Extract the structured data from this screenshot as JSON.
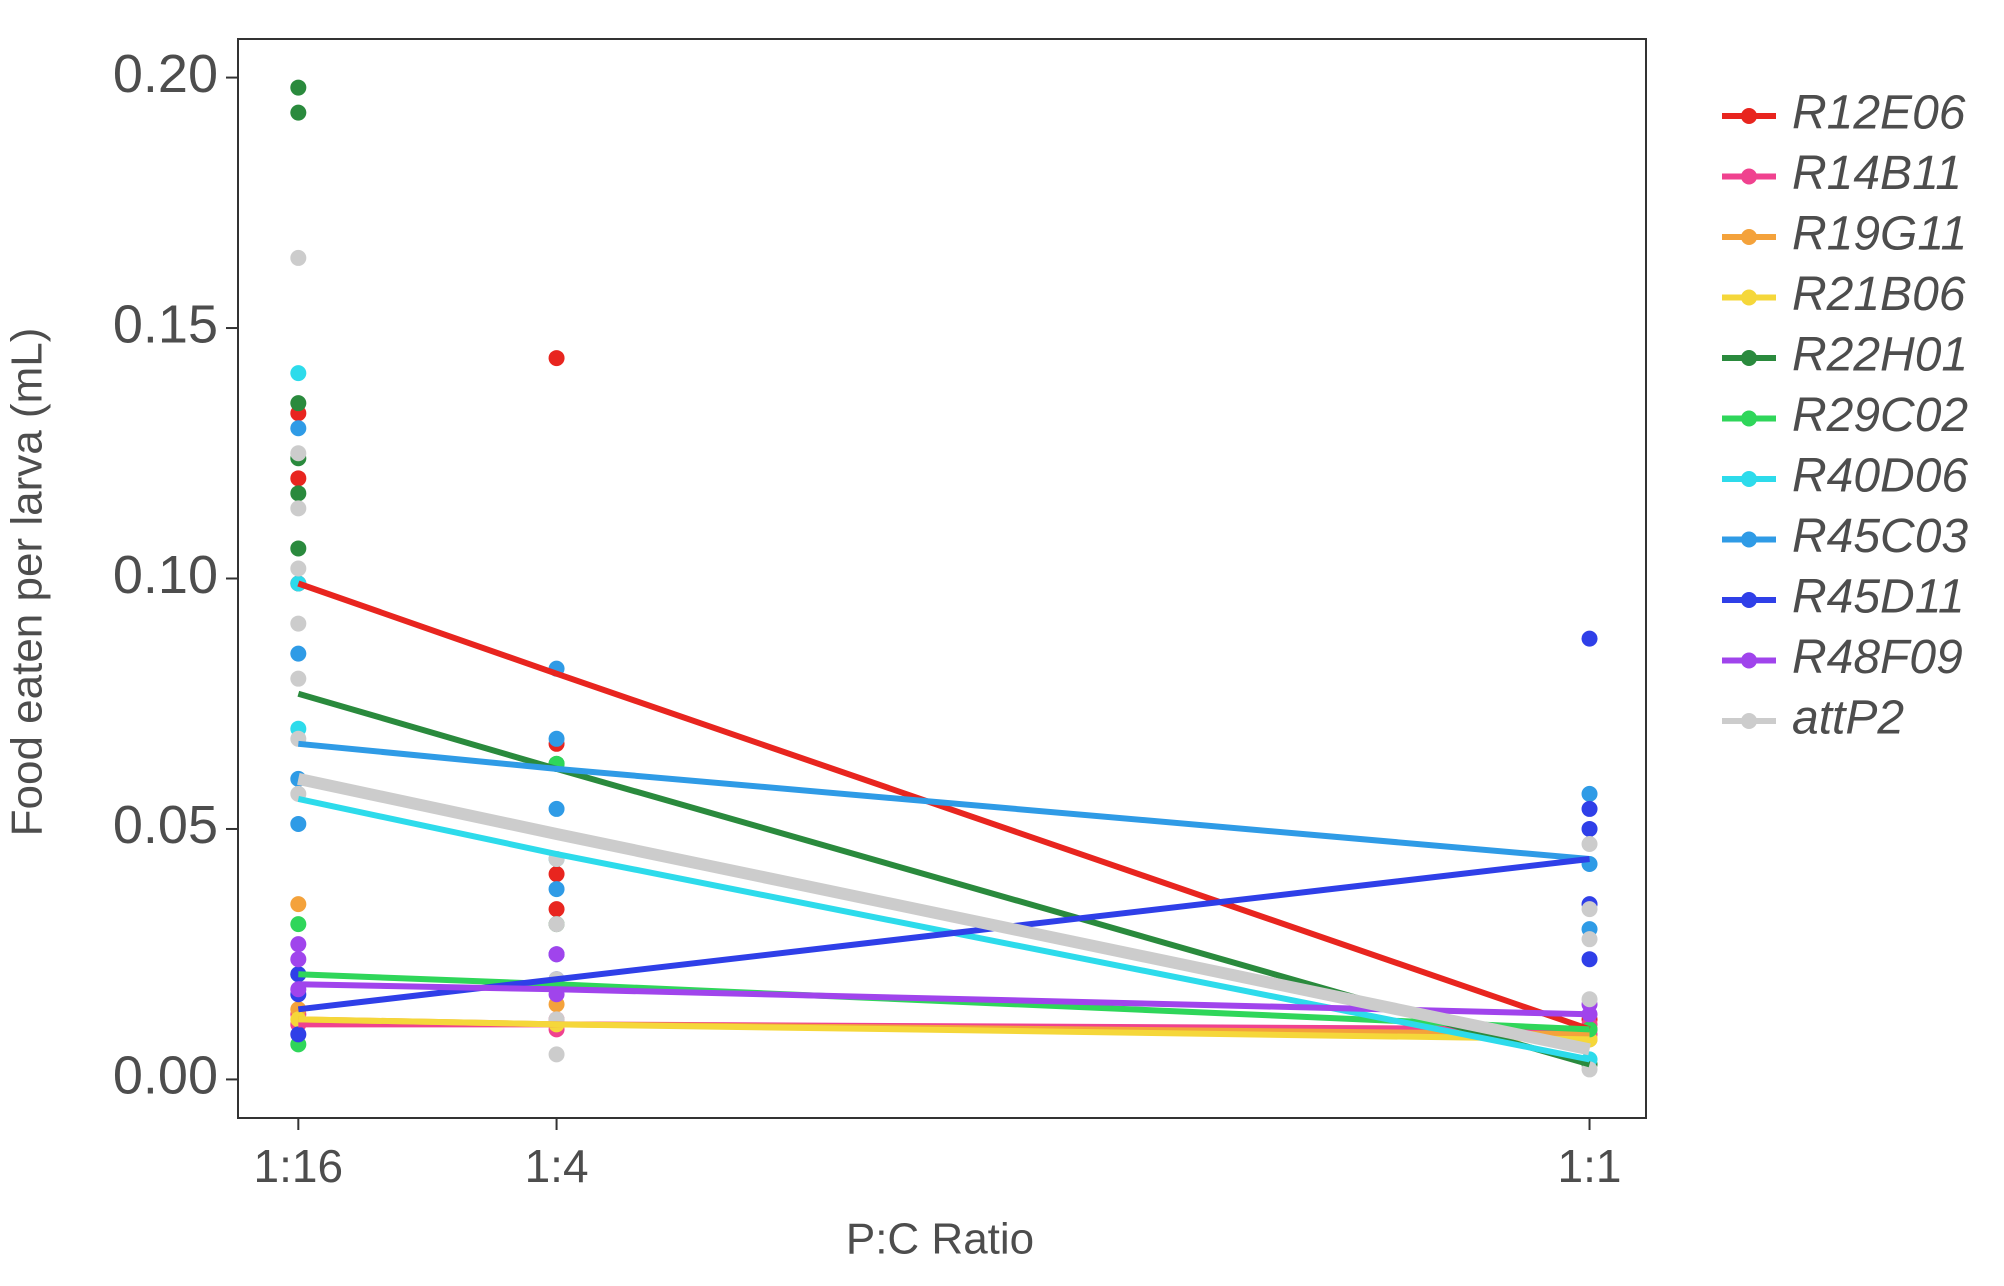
{
  "chart_data": {
    "type": "scatter_line",
    "x_label": "P:C Ratio",
    "y_label": "Food eaten per larva (mL)",
    "x": [
      0.0625,
      0.25,
      1
    ],
    "xlim": [
      0.0187,
      1.041
    ],
    "xticks": [
      {
        "value": 0.0625,
        "label": "1:16"
      },
      {
        "value": 0.25,
        "label": "1:4"
      },
      {
        "value": 1,
        "label": "1:1"
      }
    ],
    "ylim": [
      -0.0077,
      0.2077
    ],
    "yticks": [
      {
        "value": 0,
        "label": "0.00"
      },
      {
        "value": 0.05,
        "label": "0.05"
      },
      {
        "value": 0.1,
        "label": "0.10"
      },
      {
        "value": 0.15,
        "label": "0.15"
      },
      {
        "value": 0.2,
        "label": "0.20"
      }
    ],
    "grid": false,
    "legend": "right",
    "series": [
      {
        "name": "R12E06",
        "color": "#e8251f",
        "values": [
          0.099,
          0.081,
          0.01
        ],
        "px": [
          0.0625,
          0.0625,
          0.0625,
          0.25,
          0.25,
          0.25,
          0.25,
          1,
          1
        ],
        "py": [
          0.12,
          0.133,
          0.099,
          0.144,
          0.067,
          0.041,
          0.034,
          0.01,
          0.012
        ]
      },
      {
        "name": "R14B11",
        "color": "#f0428f",
        "values": [
          0.011,
          0.011,
          0.01
        ],
        "px": [
          0.0625,
          0.0625,
          0.25,
          0.25,
          1,
          1
        ],
        "py": [
          0.013,
          0.011,
          0.012,
          0.01,
          0.009,
          0.011
        ]
      },
      {
        "name": "R19G11",
        "color": "#f4a23b",
        "values": [
          0.012,
          0.011,
          0.009
        ],
        "px": [
          0.0625,
          0.0625,
          0.25,
          1
        ],
        "py": [
          0.035,
          0.014,
          0.015,
          0.008
        ]
      },
      {
        "name": "R21B06",
        "color": "#f5d73a",
        "values": [
          0.012,
          0.011,
          0.008
        ],
        "px": [
          0.0625,
          0.25,
          1
        ],
        "py": [
          0.012,
          0.011,
          0.008
        ]
      },
      {
        "name": "R22H01",
        "color": "#2a8a3d",
        "values": [
          0.077,
          0.062,
          0.003
        ],
        "px": [
          0.0625,
          0.0625,
          0.0625,
          0.0625,
          0.0625,
          0.0625,
          0.25,
          0.25,
          1
        ],
        "py": [
          0.198,
          0.193,
          0.135,
          0.124,
          0.117,
          0.106,
          0.031,
          0.063,
          0.003
        ]
      },
      {
        "name": "R29C02",
        "color": "#2fd65a",
        "values": [
          0.021,
          0.019,
          0.01
        ],
        "px": [
          0.0625,
          0.0625,
          0.0625,
          0.25,
          0.25,
          1
        ],
        "py": [
          0.031,
          0.007,
          0.021,
          0.063,
          0.019,
          0.01
        ]
      },
      {
        "name": "R40D06",
        "color": "#2ddbeb",
        "values": [
          0.056,
          0.045,
          0.004
        ],
        "px": [
          0.0625,
          0.0625,
          0.0625,
          0.25,
          1
        ],
        "py": [
          0.141,
          0.099,
          0.07,
          0.044,
          0.004
        ]
      },
      {
        "name": "R45C03",
        "color": "#2f9be6",
        "values": [
          0.067,
          0.062,
          0.044
        ],
        "px": [
          0.0625,
          0.0625,
          0.0625,
          0.0625,
          0.25,
          0.25,
          0.25,
          0.25,
          1,
          1,
          1
        ],
        "py": [
          0.13,
          0.085,
          0.06,
          0.051,
          0.082,
          0.068,
          0.054,
          0.038,
          0.057,
          0.043,
          0.03
        ]
      },
      {
        "name": "R45D11",
        "color": "#2f3fe8",
        "values": [
          0.014,
          0.02,
          0.044
        ],
        "px": [
          0.0625,
          0.0625,
          0.0625,
          0.25,
          0.25,
          1,
          1,
          1,
          1,
          1
        ],
        "py": [
          0.009,
          0.017,
          0.021,
          0.02,
          0.025,
          0.088,
          0.054,
          0.05,
          0.035,
          0.024
        ]
      },
      {
        "name": "R48F09",
        "color": "#a044ec",
        "values": [
          0.019,
          0.018,
          0.013
        ],
        "px": [
          0.0625,
          0.0625,
          0.0625,
          0.25,
          0.25,
          1,
          1
        ],
        "py": [
          0.027,
          0.024,
          0.018,
          0.025,
          0.017,
          0.013,
          0.015
        ]
      },
      {
        "name": "attP2",
        "color": "#cccccc",
        "values": [
          0.06,
          0.049,
          0.006
        ],
        "px": [
          0.0625,
          0.0625,
          0.0625,
          0.0625,
          0.0625,
          0.0625,
          0.0625,
          0.0625,
          0.25,
          0.25,
          0.25,
          0.25,
          0.25,
          1,
          1,
          1,
          1,
          1
        ],
        "py": [
          0.164,
          0.125,
          0.114,
          0.102,
          0.091,
          0.08,
          0.068,
          0.057,
          0.044,
          0.031,
          0.02,
          0.012,
          0.005,
          0.047,
          0.034,
          0.028,
          0.016,
          0.002
        ]
      }
    ]
  }
}
